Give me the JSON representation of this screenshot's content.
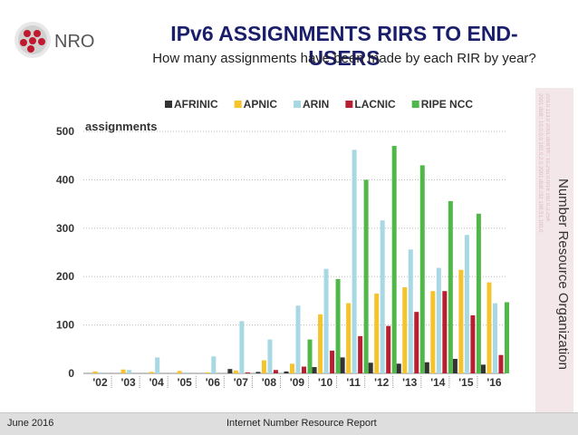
{
  "header": {
    "logo_text": "NRO",
    "title": "IPv6 ASSIGNMENTS RIRS TO END-USERS",
    "subtitle": "How many assignments have been made by each RIR by year?"
  },
  "sidebar": {
    "text": "Number Resource Organization"
  },
  "footer": {
    "date": "June 2016",
    "report": "Internet Number Resource Report"
  },
  "colors": {
    "AFRINIC": "#333333",
    "APNIC": "#f5c32b",
    "ARIN": "#a8d8e4",
    "LACNIC": "#b81f33",
    "RIPE NCC": "#4fb848",
    "title": "#1b1f6b"
  },
  "chart_data": {
    "type": "bar",
    "ylabel": "assignments",
    "ylim": [
      0,
      500
    ],
    "yticks": [
      0,
      100,
      200,
      300,
      400,
      500
    ],
    "grid": "horizontal dotted",
    "legend": "top",
    "categories": [
      "'02",
      "'03",
      "'04",
      "'05",
      "'06",
      "'07",
      "'08",
      "'09",
      "'10",
      "'11",
      "'12",
      "'13",
      "'14",
      "'15",
      "'16"
    ],
    "series": [
      {
        "name": "AFRINIC",
        "values": [
          0,
          0,
          0,
          0,
          0,
          9,
          3,
          4,
          13,
          33,
          22,
          20,
          23,
          30,
          18
        ]
      },
      {
        "name": "APNIC",
        "values": [
          4,
          8,
          3,
          5,
          2,
          6,
          27,
          20,
          122,
          145,
          165,
          178,
          170,
          214,
          188
        ]
      },
      {
        "name": "ARIN",
        "values": [
          2,
          7,
          33,
          2,
          35,
          108,
          70,
          140,
          216,
          462,
          316,
          256,
          218,
          286,
          145
        ]
      },
      {
        "name": "LACNIC",
        "values": [
          0,
          0,
          0,
          0,
          0,
          2,
          7,
          14,
          47,
          77,
          98,
          127,
          170,
          120,
          38
        ]
      },
      {
        "name": "RIPE NCC",
        "values": [
          0,
          0,
          0,
          0,
          0,
          0,
          0,
          70,
          195,
          400,
          470,
          430,
          356,
          330,
          147
        ]
      }
    ]
  }
}
